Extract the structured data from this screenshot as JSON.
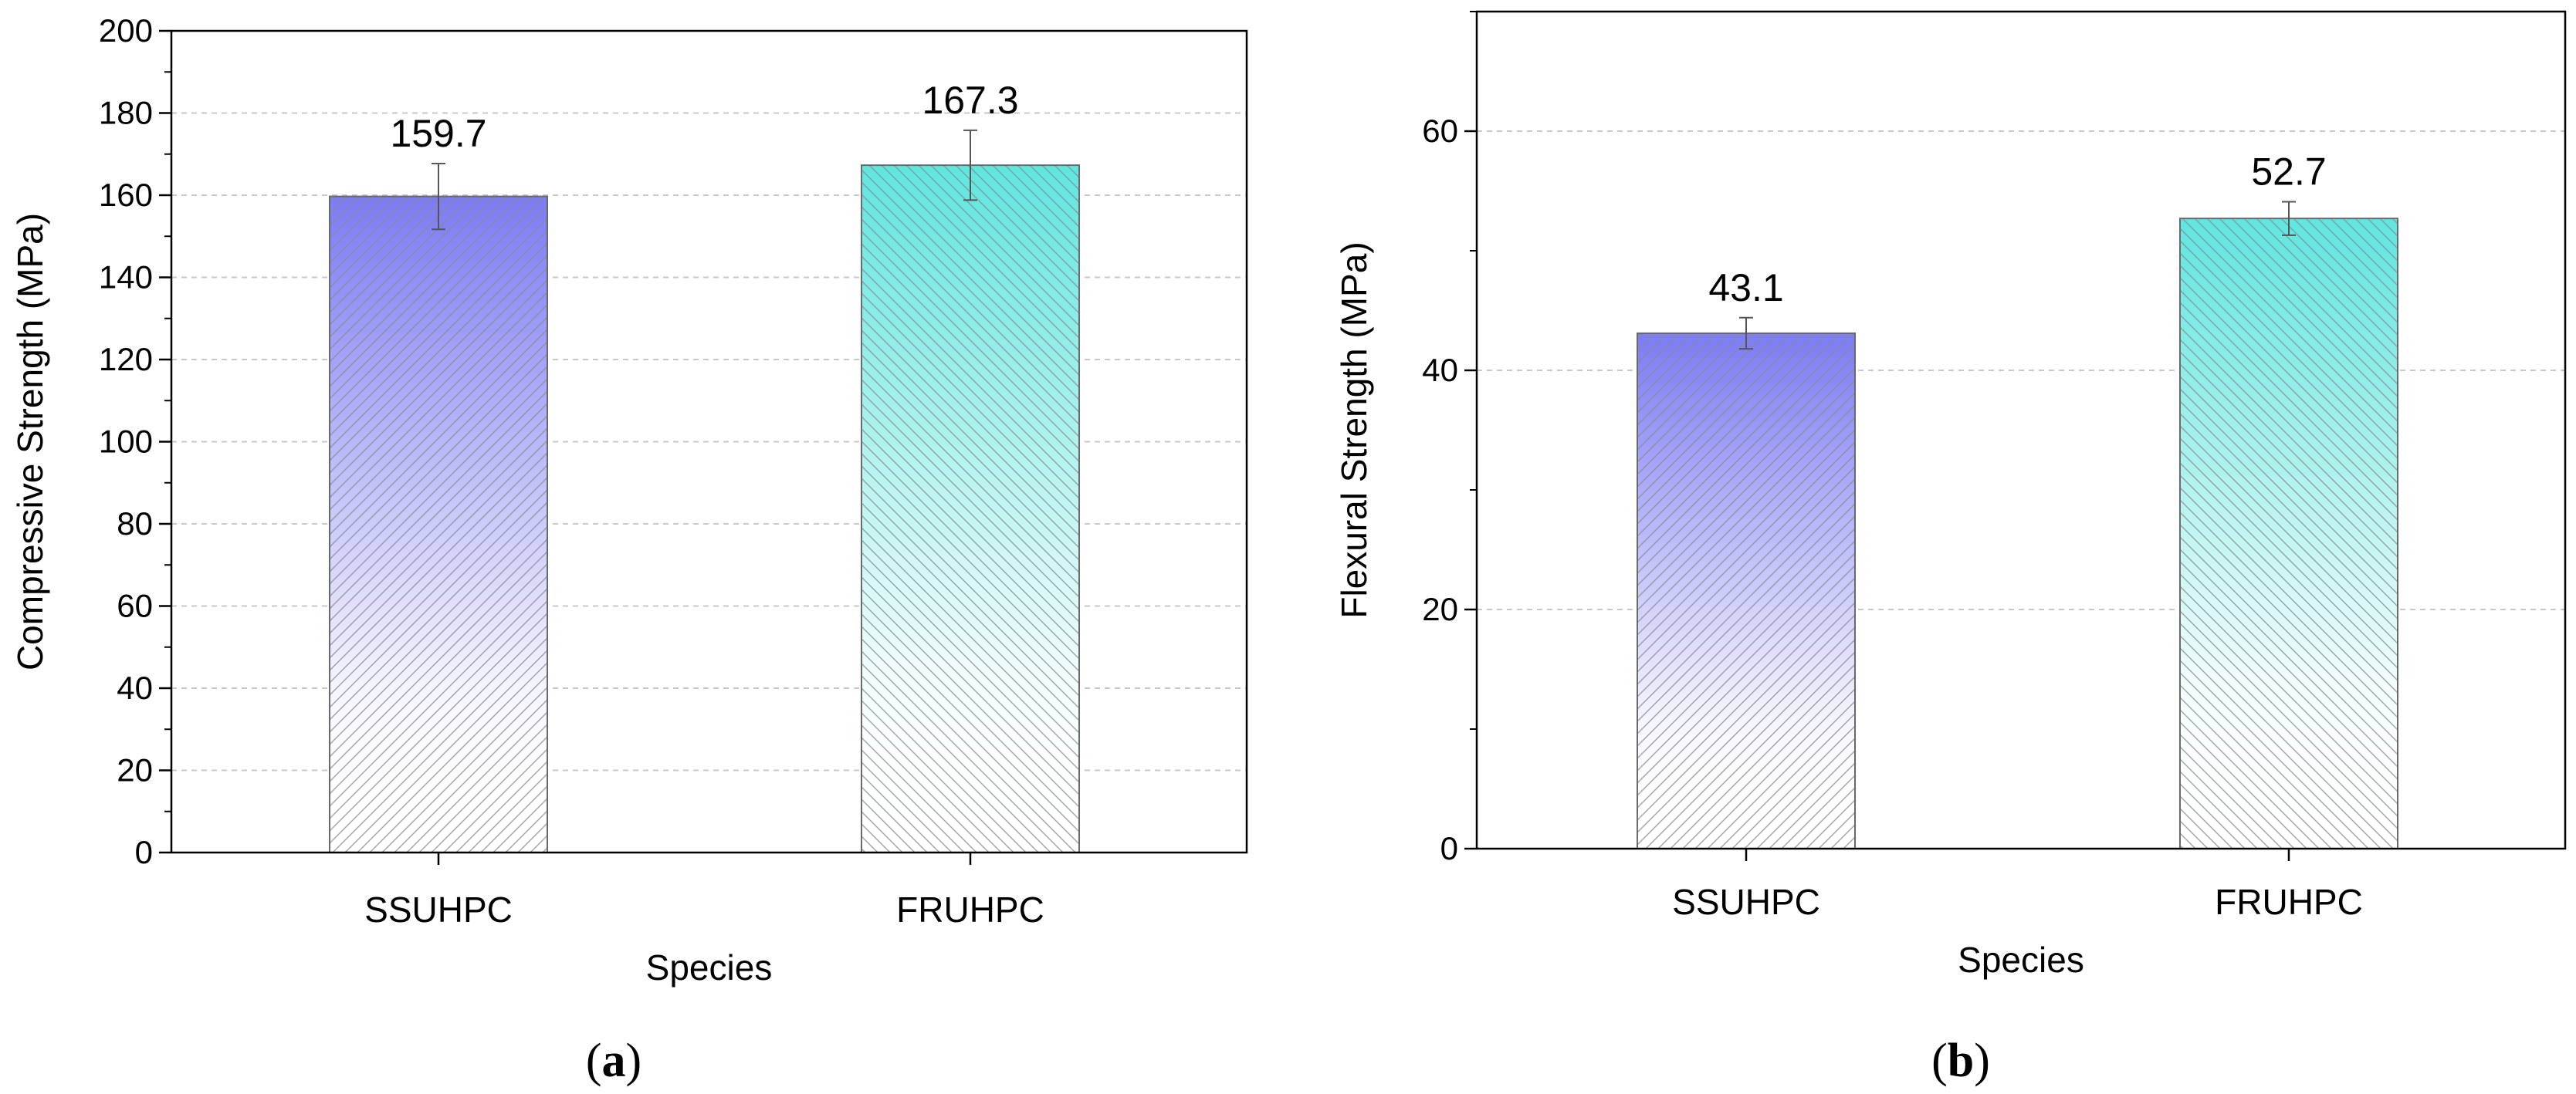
{
  "figure": {
    "panels": [
      "a",
      "b"
    ]
  },
  "chart_data": [
    {
      "type": "bar",
      "panel": "a",
      "categories": [
        "SSUHPC",
        "FRUHPC"
      ],
      "values": [
        159.7,
        167.3
      ],
      "error": [
        8.0,
        8.5
      ],
      "data_labels": [
        "159.7",
        "167.3"
      ],
      "xlabel": "Species",
      "ylabel": "Compressive Strength (MPa)",
      "ylim": [
        0,
        200
      ],
      "yticks": [
        0,
        20,
        40,
        60,
        80,
        100,
        120,
        140,
        160,
        180,
        200
      ],
      "minor_ticks": true,
      "grid": "horizontal dashed",
      "bar_colors": [
        "#7b7bf5",
        "#5ee6e0"
      ],
      "hatch": [
        "diagonal /",
        "diagonal \\"
      ],
      "gradient": "color fading to white downward"
    },
    {
      "type": "bar",
      "panel": "b",
      "categories": [
        "SSUHPC",
        "FRUHPC"
      ],
      "values": [
        43.1,
        52.7
      ],
      "error": [
        1.3,
        1.4
      ],
      "data_labels": [
        "43.1",
        "52.7"
      ],
      "xlabel": "Species",
      "ylabel": "Flexural Strength (MPa)",
      "ylim": [
        0,
        70
      ],
      "yticks": [
        0,
        20,
        40,
        60
      ],
      "minor_ticks": true,
      "grid": "horizontal dashed",
      "bar_colors": [
        "#7b7bf5",
        "#5ee6e0"
      ],
      "hatch": [
        "diagonal /",
        "diagonal \\"
      ],
      "gradient": "color fading to white downward"
    }
  ]
}
